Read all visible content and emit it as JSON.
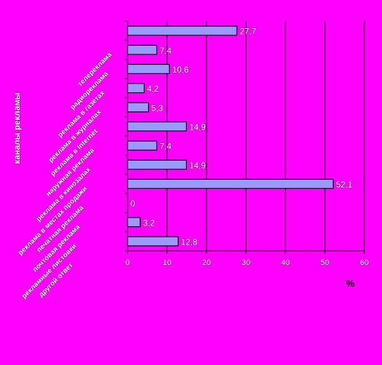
{
  "chart_data": {
    "type": "bar",
    "orientation": "horizontal",
    "ylabel": "каналы рекламы",
    "xunit": "%",
    "xlim": [
      0,
      60
    ],
    "xticks": [
      0,
      10,
      20,
      30,
      40,
      50,
      60
    ],
    "grid": true,
    "bar_color": "#9999ff",
    "categories": [
      "телереклама",
      "радиореклама",
      "реклама в газетах",
      "реклама в журналах",
      "реклама в Internet",
      "наружная реклама",
      "реклама в кинозалах",
      "реклама в местах продажи",
      "печатная реклама",
      "почтовая реклама",
      "рекламные листовки",
      "другой ответ"
    ],
    "values": [
      27.7,
      7.4,
      10.6,
      4.2,
      5.3,
      14.9,
      7.4,
      14.9,
      52.1,
      0,
      3.2,
      12.8
    ],
    "value_labels": [
      "27,7",
      "7,4",
      "10,6",
      "4,2",
      "5,3",
      "14,9",
      "7,4",
      "14,9",
      "52,1",
      "0",
      "3,2",
      "12,8"
    ]
  }
}
